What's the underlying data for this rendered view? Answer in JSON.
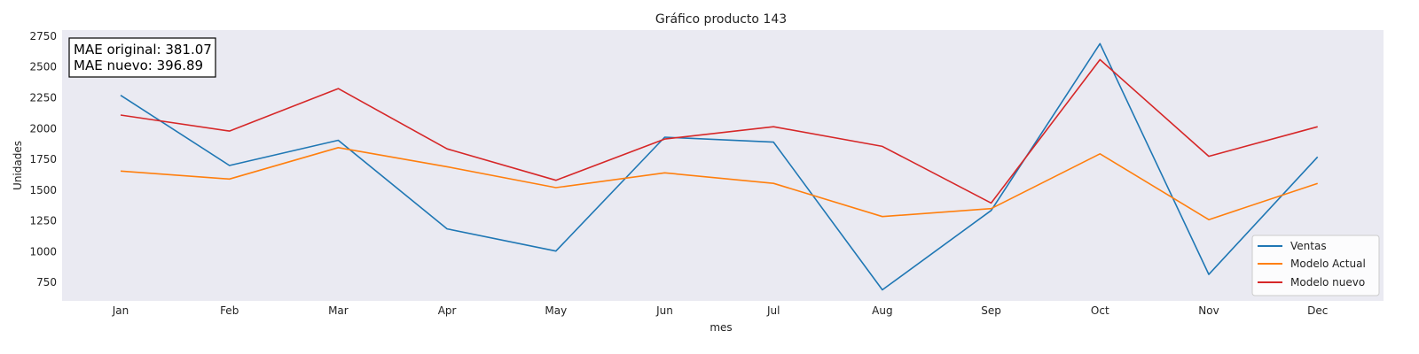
{
  "chart_data": {
    "type": "line",
    "title": "Gráfico producto 143",
    "xlabel": "mes",
    "ylabel": "Unidades",
    "categories": [
      "Jan",
      "Feb",
      "Mar",
      "Apr",
      "May",
      "Jun",
      "Jul",
      "Aug",
      "Sep",
      "Oct",
      "Nov",
      "Dec"
    ],
    "yticks": [
      750,
      1000,
      1250,
      1500,
      1750,
      2000,
      2250,
      2500,
      2750
    ],
    "ylim": [
      600,
      2800
    ],
    "grid": false,
    "legend_position": "bottom-right",
    "series": [
      {
        "name": "Ventas",
        "color": "#1f77b4",
        "values": [
          2270,
          1700,
          1905,
          1185,
          1005,
          1930,
          1890,
          690,
          1335,
          2690,
          815,
          1770
        ]
      },
      {
        "name": "Modelo Actual",
        "color": "#ff7f0e",
        "values": [
          1655,
          1590,
          1845,
          1690,
          1520,
          1640,
          1555,
          1285,
          1350,
          1795,
          1260,
          1555
        ]
      },
      {
        "name": "Modelo nuevo",
        "color": "#d62728",
        "values": [
          2110,
          1980,
          2325,
          1835,
          1580,
          1915,
          2015,
          1855,
          1395,
          2560,
          1775,
          2015
        ]
      }
    ],
    "annotation": {
      "line1": "MAE original: 381.07",
      "line2": "MAE nuevo: 396.89"
    }
  }
}
